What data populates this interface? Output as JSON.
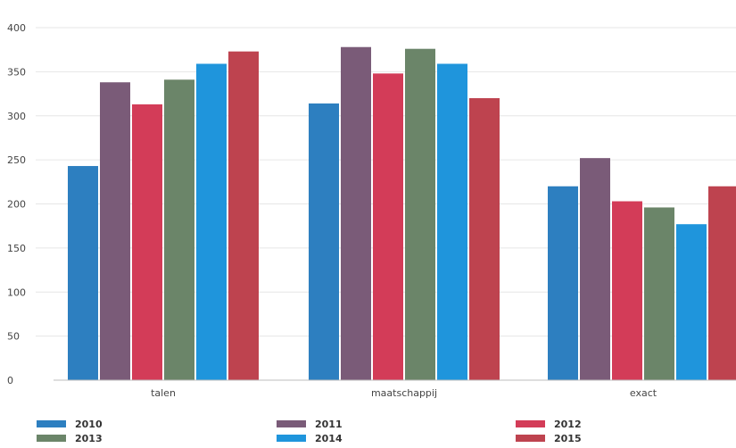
{
  "chart_data": {
    "type": "bar",
    "categories": [
      "talen",
      "maatschappij",
      "exact"
    ],
    "series": [
      {
        "name": "2010",
        "values": [
          243,
          314,
          220
        ],
        "color": "#2d7fc0"
      },
      {
        "name": "2011",
        "values": [
          338,
          378,
          252
        ],
        "color": "#7a5b78"
      },
      {
        "name": "2012",
        "values": [
          313,
          348,
          203
        ],
        "color": "#d33c58"
      },
      {
        "name": "2013",
        "values": [
          341,
          376,
          196
        ],
        "color": "#6b8569"
      },
      {
        "name": "2014",
        "values": [
          359,
          359,
          177
        ],
        "color": "#1f95dc"
      },
      {
        "name": "2015",
        "values": [
          373,
          320,
          220
        ],
        "color": "#be434f"
      }
    ],
    "yticks": [
      0,
      50,
      100,
      150,
      200,
      250,
      300,
      350,
      400
    ],
    "ylim": [
      0,
      400
    ],
    "grid": true,
    "legend": "bottom"
  }
}
